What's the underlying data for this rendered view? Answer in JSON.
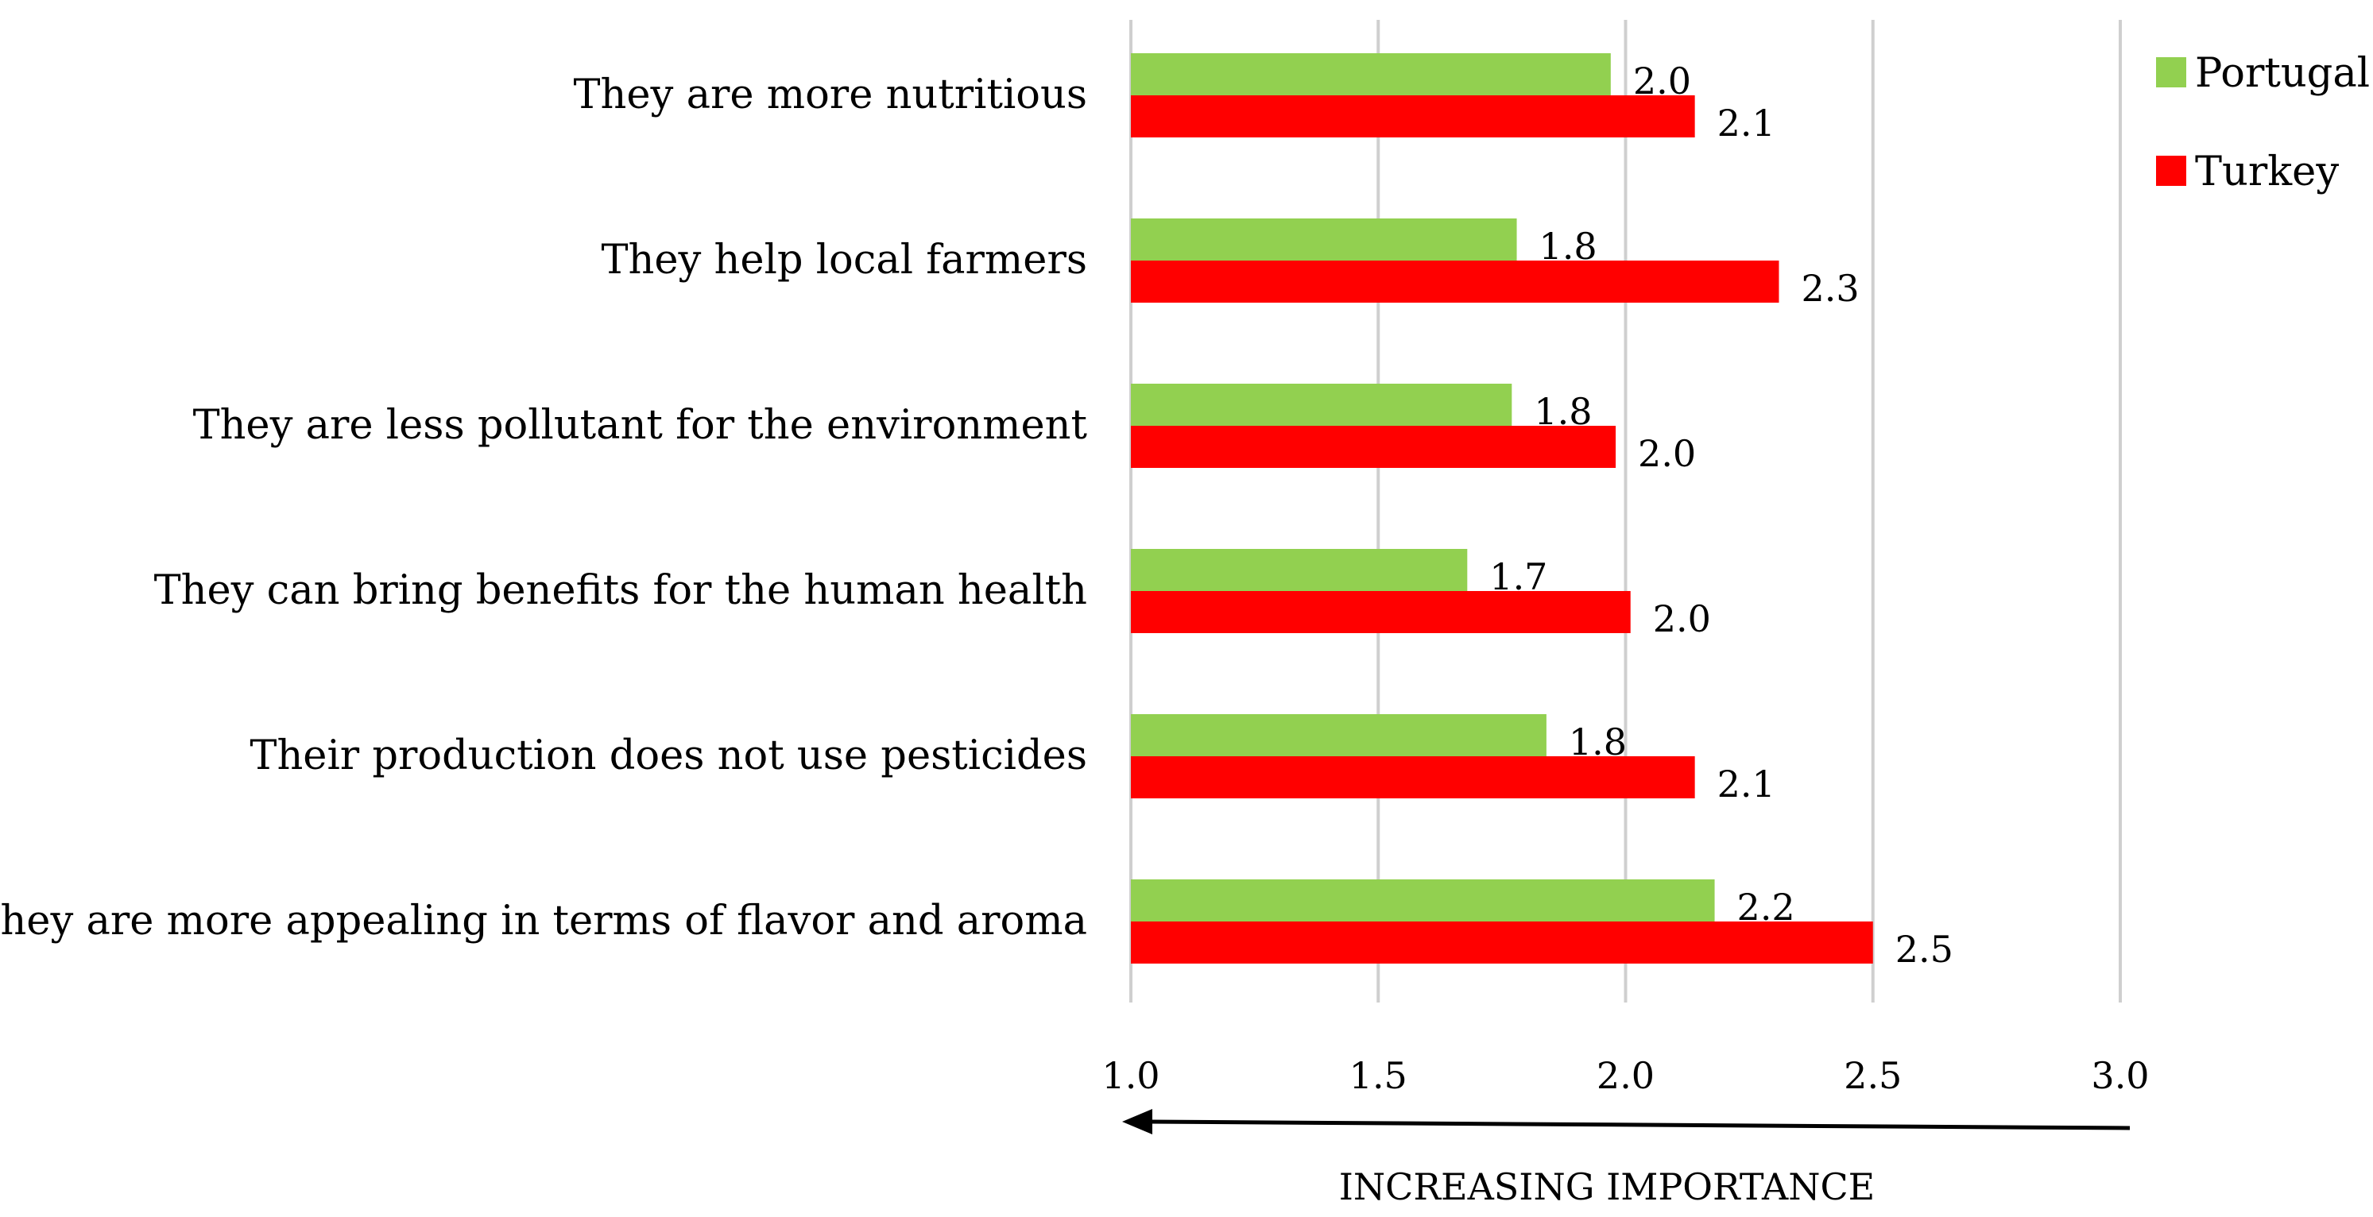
{
  "chart_data": {
    "type": "bar",
    "orientation": "horizontal",
    "categories": [
      "They are more nutritious",
      "They help local farmers",
      "They are less pollutant for the environment",
      "They can bring benefits for the human health",
      "Their production does not use pesticides",
      "They are more appealing in terms of flavor and aroma"
    ],
    "series": [
      {
        "name": "Portugal",
        "color": "#92d050",
        "values": [
          1.97,
          1.78,
          1.77,
          1.68,
          1.84,
          2.18
        ],
        "labels": [
          "2.0",
          "1.8",
          "1.8",
          "1.7",
          "1.8",
          "2.2"
        ]
      },
      {
        "name": "Turkey",
        "color": "#ff0000",
        "values": [
          2.14,
          2.31,
          1.98,
          2.01,
          2.14,
          2.5
        ],
        "labels": [
          "2.1",
          "2.3",
          "2.0",
          "2.0",
          "2.1",
          "2.5"
        ]
      }
    ],
    "xlim": [
      1.0,
      3.0
    ],
    "xticks": [
      "1.0",
      "1.5",
      "2.0",
      "2.5",
      "3.0"
    ],
    "xlabel": "INCREASING IMPORTANCE",
    "arrow_direction": "left",
    "grid": true,
    "legend_position": "top-right"
  }
}
